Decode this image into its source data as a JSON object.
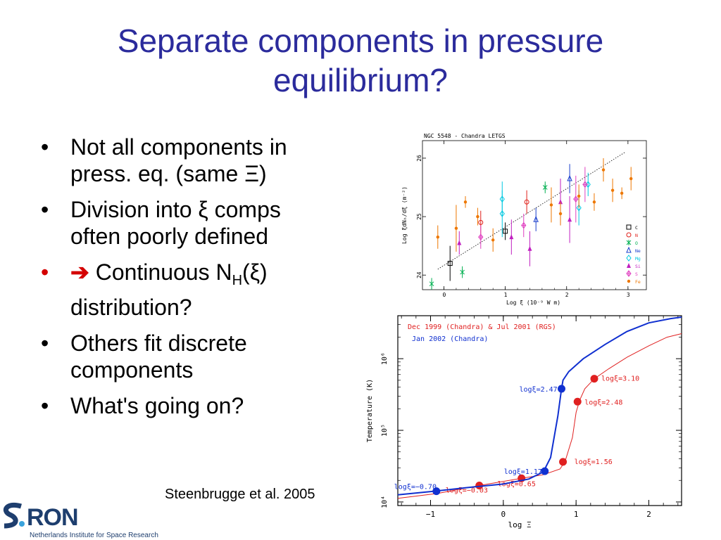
{
  "slide": {
    "title_line1": "Separate components in pressure",
    "title_line2": "equilibrium?",
    "bullets": [
      {
        "marker": "•",
        "lines": [
          "Not all components in",
          "press. eq. (same Ξ)"
        ]
      },
      {
        "marker": "•",
        "lines": [
          "Division into ξ comps",
          "often poorly defined"
        ]
      },
      {
        "marker": "•",
        "arrow": "➔",
        "text_a": "Continuous N",
        "sub": "H",
        "text_b": "(ξ)",
        "line2": "distribution?"
      },
      {
        "marker": "•",
        "lines": [
          "Others fit discrete",
          "components"
        ]
      },
      {
        "marker": "•",
        "lines": [
          "What's going on?"
        ]
      }
    ],
    "citation": "Steenbrugge et al. 2005",
    "colors": {
      "title": "#2b2b9c",
      "arrow": "#d40000",
      "logo": "#1e3e6e"
    }
  },
  "logo": {
    "name": "RON",
    "subtitle": "Netherlands Institute for Space Research"
  },
  "chart_data": [
    {
      "type": "scatter",
      "title": "NGC 5548 - Chandra LETGS",
      "xlabel": "Log ξ (10⁻⁹ W m)",
      "ylabel": "Log ξdNₕ/dξ (m⁻²)",
      "xlim": [
        -0.35,
        3.3
      ],
      "ylim": [
        23.75,
        26.3
      ],
      "xticks": [
        0,
        1,
        2,
        3
      ],
      "yticks": [
        24,
        25,
        26
      ],
      "legend": [
        "C",
        "N",
        "O",
        "Ne",
        "Mg",
        "Si",
        "S",
        "Fe"
      ],
      "legend_position": "right",
      "series": [
        {
          "name": "C",
          "color": "#000000",
          "marker": "square",
          "points": [
            [
              0.1,
              24.2,
              0.3
            ],
            [
              1.0,
              24.75,
              0.15
            ]
          ]
        },
        {
          "name": "N",
          "color": "#e0201a",
          "marker": "circle",
          "points": [
            [
              0.6,
              24.9,
              0.2
            ],
            [
              1.35,
              25.25,
              0.2
            ]
          ]
        },
        {
          "name": "O",
          "color": "#00b050",
          "marker": "cross",
          "points": [
            [
              -0.2,
              23.85,
              0.1
            ],
            [
              0.3,
              24.05,
              0.1
            ],
            [
              1.65,
              25.5,
              0.1
            ]
          ]
        },
        {
          "name": "Ne",
          "color": "#1a3fcc",
          "marker": "triangle",
          "points": [
            [
              1.5,
              24.95,
              0.2
            ],
            [
              2.05,
              25.65,
              0.25
            ]
          ]
        },
        {
          "name": "Mg",
          "color": "#00c8e0",
          "marker": "diamond",
          "points": [
            [
              0.95,
              25.3,
              0.3
            ],
            [
              0.95,
              25.05,
              0.4
            ],
            [
              2.2,
              25.15,
              0.3
            ],
            [
              2.35,
              25.55,
              0.2
            ]
          ]
        },
        {
          "name": "Si",
          "color": "#c020c0",
          "marker": "triangle-filled",
          "points": [
            [
              0.25,
              24.55,
              0.2
            ],
            [
              1.1,
              24.65,
              0.3
            ],
            [
              1.4,
              24.45,
              0.3
            ],
            [
              1.9,
              25.25,
              0.4
            ],
            [
              2.05,
              24.95,
              0.4
            ]
          ]
        },
        {
          "name": "S",
          "color": "#e040c0",
          "marker": "diamond-cross",
          "points": [
            [
              0.6,
              24.65,
              0.2
            ],
            [
              1.3,
              24.85,
              0.2
            ],
            [
              2.15,
              25.3,
              0.4
            ],
            [
              2.3,
              25.55,
              0.3
            ]
          ]
        },
        {
          "name": "Fe",
          "color": "#ee7700",
          "marker": "dot",
          "points": [
            [
              -0.1,
              24.65,
              0.2
            ],
            [
              0.2,
              24.8,
              0.4
            ],
            [
              0.35,
              25.25,
              0.1
            ],
            [
              0.55,
              25.0,
              0.15
            ],
            [
              0.8,
              24.6,
              0.2
            ],
            [
              1.75,
              25.2,
              0.3
            ],
            [
              1.9,
              25.05,
              0.2
            ],
            [
              2.2,
              25.35,
              0.2
            ],
            [
              2.45,
              25.25,
              0.15
            ],
            [
              2.6,
              25.8,
              0.2
            ],
            [
              2.75,
              25.45,
              0.2
            ],
            [
              2.9,
              25.4,
              0.1
            ],
            [
              3.05,
              25.65,
              0.2
            ]
          ]
        }
      ],
      "trend_line": [
        [
          -0.1,
          24.1
        ],
        [
          2.95,
          26.1
        ]
      ]
    },
    {
      "type": "line",
      "xlabel": "log Ξ",
      "ylabel": "Temperature (K)",
      "xlim": [
        -1.45,
        2.45
      ],
      "ylim": [
        3.95,
        6.6
      ],
      "yscale": "log",
      "xticks": [
        -1,
        0,
        1,
        2
      ],
      "yticks": [
        4,
        5,
        6
      ],
      "ytick_labels": [
        "10⁴",
        "10⁵",
        "10⁶"
      ],
      "legend_position": "top-left",
      "series": [
        {
          "name": "Dec 1999 (Chandra) & Jul 2001 (RGS)",
          "color": "#e02020",
          "x": [
            -1.45,
            -0.9,
            -0.33,
            0.25,
            0.55,
            0.78,
            0.85,
            0.95,
            1.0,
            1.05,
            1.12,
            1.25,
            1.45,
            1.7,
            2.0,
            2.25,
            2.45
          ],
          "y": [
            4.05,
            4.12,
            4.23,
            4.33,
            4.38,
            4.46,
            4.57,
            4.9,
            5.25,
            5.42,
            5.58,
            5.72,
            5.86,
            6.02,
            6.18,
            6.3,
            6.35
          ],
          "points": [
            {
              "x": -0.33,
              "y": 4.23,
              "label": "logξ=−0.03"
            },
            {
              "x": 0.25,
              "y": 4.33,
              "label": "logξ=0.65"
            },
            {
              "x": 0.82,
              "y": 4.56,
              "label": "logξ=1.56"
            },
            {
              "x": 1.02,
              "y": 5.4,
              "label": "logξ=2.48"
            },
            {
              "x": 1.25,
              "y": 5.72,
              "label": "logξ=3.10"
            }
          ]
        },
        {
          "name": "Jan 2002 (Chandra)",
          "color": "#1030d0",
          "x": [
            -1.45,
            -0.95,
            -0.5,
            0.0,
            0.35,
            0.55,
            0.65,
            0.75,
            0.8,
            0.82,
            0.9,
            1.1,
            1.4,
            1.7,
            2.0,
            2.3,
            2.45
          ],
          "y": [
            4.1,
            4.15,
            4.2,
            4.25,
            4.32,
            4.42,
            4.62,
            5.2,
            5.58,
            5.7,
            5.82,
            6.0,
            6.2,
            6.38,
            6.5,
            6.56,
            6.58
          ],
          "points": [
            {
              "x": -0.92,
              "y": 4.15,
              "label": "logξ=−0.70"
            },
            {
              "x": 0.57,
              "y": 4.43,
              "label": "logξ=1.17"
            },
            {
              "x": 0.8,
              "y": 5.58,
              "label": "logξ=2.47"
            }
          ]
        }
      ]
    }
  ]
}
